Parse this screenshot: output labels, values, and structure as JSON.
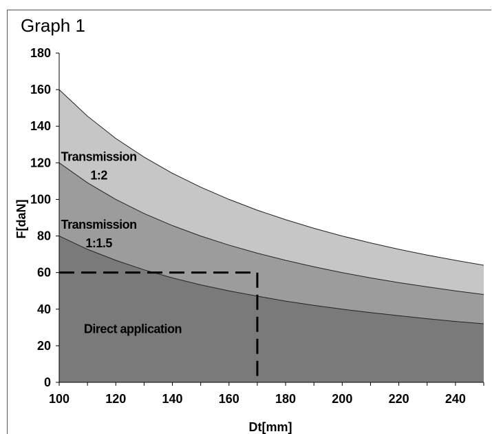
{
  "chart_data": {
    "type": "area",
    "title": "Graph 1",
    "xlabel": "Dt[mm]",
    "ylabel": "F[daN]",
    "xlim": [
      100,
      250
    ],
    "ylim": [
      0,
      180
    ],
    "x_ticks": [
      100,
      120,
      140,
      160,
      180,
      200,
      220,
      240
    ],
    "y_ticks": [
      0,
      20,
      40,
      60,
      80,
      100,
      120,
      140,
      160,
      180
    ],
    "grid": false,
    "colors": {
      "transmission_1_2": "#c6c6c6",
      "transmission_1_1_5": "#9c9c9c",
      "direct_application": "#7a7a7a",
      "boundary": "#222222",
      "marker": "#000000"
    },
    "x": [
      100,
      110,
      120,
      130,
      140,
      150,
      160,
      170,
      180,
      190,
      200,
      210,
      220,
      230,
      240,
      250
    ],
    "series": [
      {
        "name": "Transmission 1:2",
        "values": [
          160,
          145.5,
          133.3,
          123.1,
          114.3,
          106.7,
          100,
          94.1,
          88.9,
          84.2,
          80,
          76.2,
          72.7,
          69.6,
          66.7,
          64
        ]
      },
      {
        "name": "Transmission 1:1.5",
        "values": [
          120,
          109.1,
          100,
          92.3,
          85.7,
          80,
          75,
          70.6,
          66.7,
          63.2,
          60,
          57.1,
          54.5,
          52.2,
          50,
          48
        ]
      },
      {
        "name": "Direct application",
        "values": [
          80,
          72.7,
          66.7,
          61.5,
          57.1,
          53.3,
          50,
          47.1,
          44.4,
          42.1,
          40,
          38.1,
          36.4,
          34.8,
          33.3,
          32
        ]
      }
    ],
    "annotations": {
      "region_labels": [
        {
          "lines": [
            "Transmission",
            "1:2"
          ],
          "x": 114,
          "y": 121
        },
        {
          "lines": [
            "Transmission",
            "1:1.5"
          ],
          "x": 114,
          "y": 84
        },
        {
          "lines": [
            "Direct application"
          ],
          "x": 126,
          "y": 27
        }
      ],
      "marker_point": {
        "x": 170,
        "y": 60
      }
    }
  }
}
